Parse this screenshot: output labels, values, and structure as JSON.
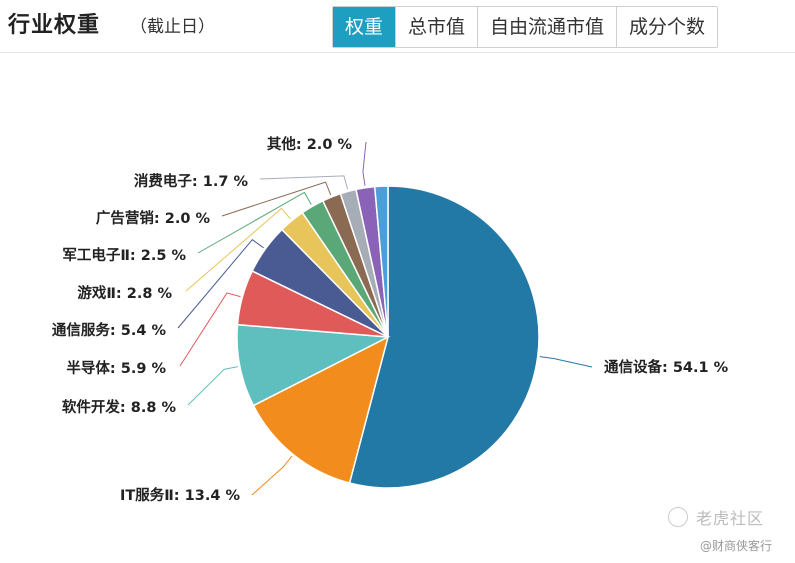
{
  "header": {
    "title": "行业权重",
    "subtitle": "（截止日）",
    "tabs": [
      {
        "label": "权重",
        "active": true
      },
      {
        "label": "总市值",
        "active": false
      },
      {
        "label": "自由流通市值",
        "active": false
      },
      {
        "label": "成分个数",
        "active": false
      }
    ]
  },
  "chart_data": {
    "type": "pie",
    "unit": "%",
    "slices": [
      {
        "label": "通信设备",
        "value": 54.1,
        "display": "54.1 %",
        "color": "#2379a6"
      },
      {
        "label": "IT服务Ⅱ",
        "value": 13.4,
        "display": "13.4 %",
        "color": "#f28c1d"
      },
      {
        "label": "软件开发",
        "value": 8.8,
        "display": "8.8 %",
        "color": "#5fbfbf"
      },
      {
        "label": "半导体",
        "value": 5.9,
        "display": "5.9 %",
        "color": "#e05a5a"
      },
      {
        "label": "通信服务",
        "value": 5.4,
        "display": "5.4 %",
        "color": "#4a5a92"
      },
      {
        "label": "游戏Ⅱ",
        "value": 2.8,
        "display": "2.8 %",
        "color": "#e8c55a"
      },
      {
        "label": "军工电子Ⅱ",
        "value": 2.5,
        "display": "2.5 %",
        "color": "#5aa878"
      },
      {
        "label": "广告营销",
        "value": 2.0,
        "display": "2.0 %",
        "color": "#8a6a52"
      },
      {
        "label": "消费电子",
        "value": 1.7,
        "display": "1.7 %",
        "color": "#a7adb6"
      },
      {
        "label": "其他",
        "value": 2.0,
        "display": "2.0 %",
        "color": "#8a63b8"
      },
      {
        "label": "",
        "value": 1.4,
        "display": "",
        "color": "#4a9fd8"
      }
    ]
  },
  "watermark": {
    "brand": "老虎社区",
    "author": "@财商侠客行"
  }
}
